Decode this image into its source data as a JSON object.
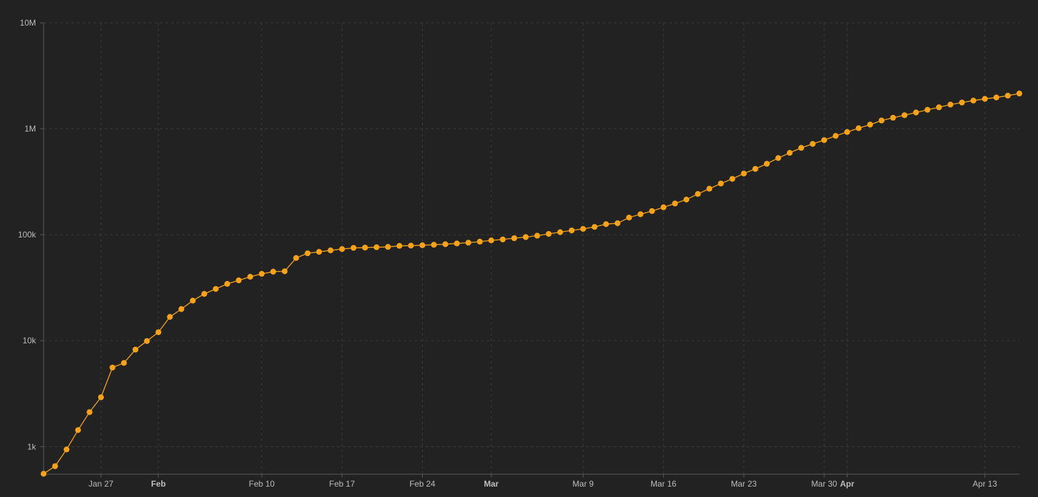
{
  "chart_data": {
    "type": "line",
    "title": "",
    "xlabel": "",
    "ylabel": "",
    "yscale": "log",
    "ylim": [
      550,
      10000000
    ],
    "xlim": [
      "2020-01-22",
      "2020-04-16"
    ],
    "grid": true,
    "colors": {
      "background": "#222222",
      "series": "#F7A21B",
      "grid": "#3a3a3a",
      "axis": "#5a5a5a",
      "tick_text": "#bdbdbd"
    },
    "y_ticks": [
      {
        "value": 1000,
        "label": "1k"
      },
      {
        "value": 10000,
        "label": "10k"
      },
      {
        "value": 100000,
        "label": "100k"
      },
      {
        "value": 1000000,
        "label": "1M"
      },
      {
        "value": 10000000,
        "label": "10M"
      }
    ],
    "x_ticks": [
      {
        "date": "2020-01-27",
        "label": "Jan 27",
        "bold": false
      },
      {
        "date": "2020-02-01",
        "label": "Feb",
        "bold": true
      },
      {
        "date": "2020-02-10",
        "label": "Feb 10",
        "bold": false
      },
      {
        "date": "2020-02-17",
        "label": "Feb 17",
        "bold": false
      },
      {
        "date": "2020-02-24",
        "label": "Feb 24",
        "bold": false
      },
      {
        "date": "2020-03-01",
        "label": "Mar",
        "bold": true
      },
      {
        "date": "2020-03-09",
        "label": "Mar 9",
        "bold": false
      },
      {
        "date": "2020-03-16",
        "label": "Mar 16",
        "bold": false
      },
      {
        "date": "2020-03-23",
        "label": "Mar 23",
        "bold": false
      },
      {
        "date": "2020-03-30",
        "label": "Mar 30",
        "bold": false
      },
      {
        "date": "2020-04-01",
        "label": "Apr",
        "bold": true
      },
      {
        "date": "2020-04-13",
        "label": "Apr 13",
        "bold": false
      }
    ],
    "series": [
      {
        "start_date": "2020-01-22",
        "values": [
          555,
          654,
          941,
          1434,
          2118,
          2927,
          5578,
          6166,
          8234,
          9927,
          12038,
          16787,
          19881,
          23892,
          27635,
          30817,
          34391,
          37120,
          40150,
          42762,
          44802,
          45221,
          60368,
          66885,
          69030,
          71224,
          73258,
          75136,
          75639,
          76197,
          76819,
          78572,
          78958,
          79561,
          80406,
          81388,
          82746,
          84112,
          86011,
          88369,
          90306,
          92840,
          95120,
          97886,
          101801,
          105847,
          109821,
          113590,
          118620,
          125875,
          128352,
          145205,
          156101,
          167454,
          181574,
          197102,
          214821,
          242570,
          272208,
          304507,
          336953,
          378235,
          418045,
          467653,
          529591,
          593291,
          660706,
          720117,
          782365,
          857487,
          932605,
          1013157,
          1095917,
          1197405,
          1272115,
          1345101,
          1426096,
          1511104,
          1595350,
          1691719,
          1771514,
          1846680,
          1917320,
          1976191,
          2056054,
          2152437
        ]
      }
    ]
  }
}
